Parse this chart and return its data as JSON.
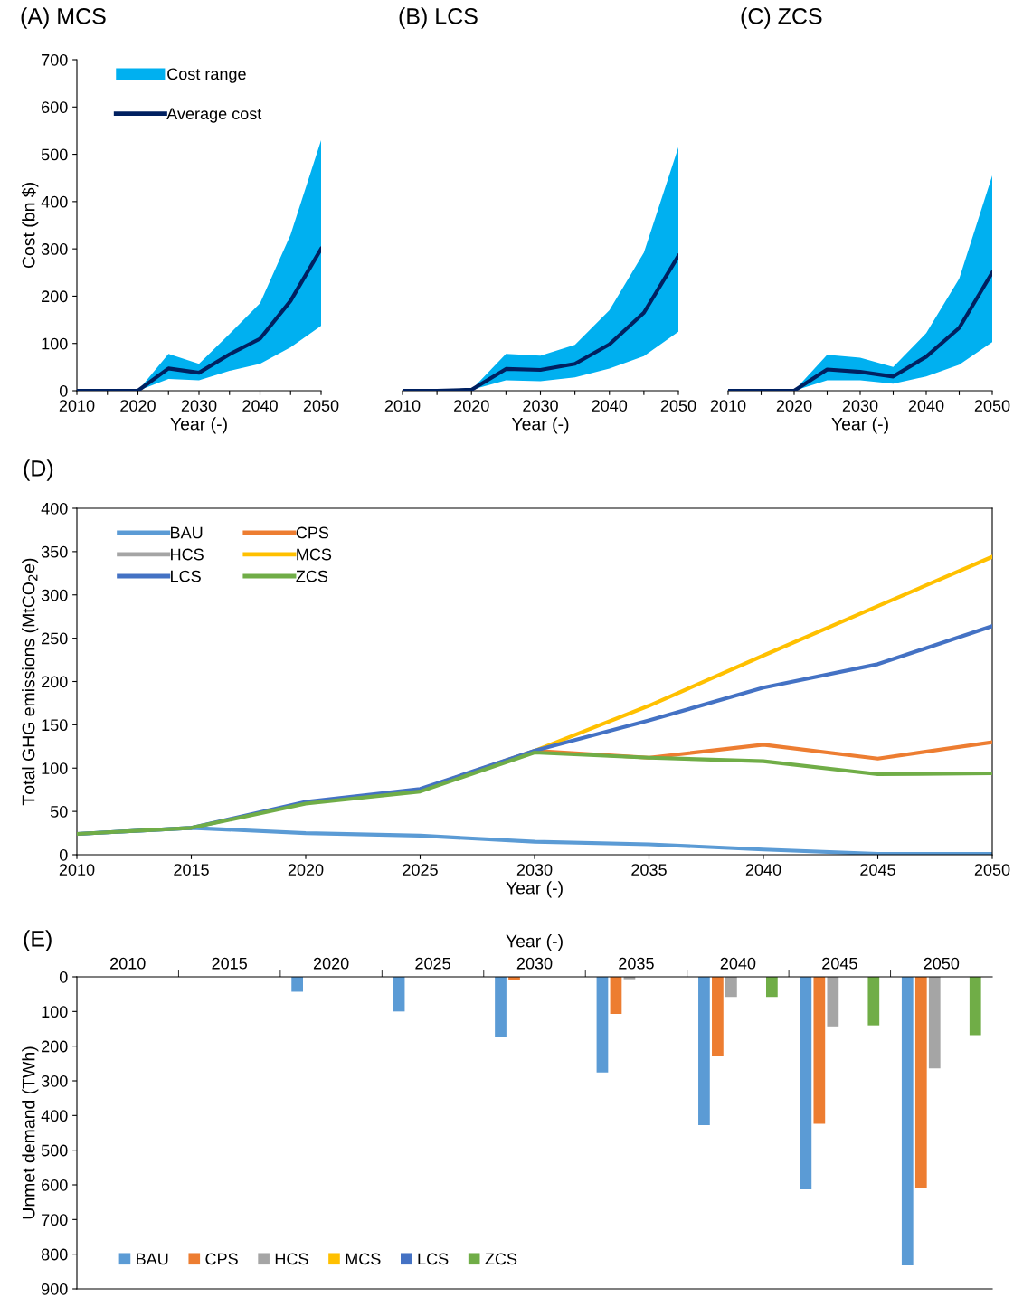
{
  "chart_data": [
    {
      "type": "area",
      "title": "(A) MCS",
      "xlabel": "Year (-)",
      "ylabel": "Cost (bn $)",
      "x": [
        2010,
        2015,
        2020,
        2025,
        2030,
        2035,
        2040,
        2045,
        2050
      ],
      "xlim": [
        2010,
        2050
      ],
      "xticks": [
        2010,
        {
          "value": 2015,
          "label": null
        },
        2020,
        {
          "value": 2025,
          "label": null
        },
        2030,
        {
          "value": 2035,
          "label": null
        },
        2040,
        {
          "value": 2045,
          "label": null
        },
        2050
      ],
      "ylim": [
        0,
        700
      ],
      "yticks": [
        0,
        100,
        200,
        300,
        400,
        500,
        600,
        700
      ],
      "grid": false,
      "legend": "top left",
      "series": [
        {
          "name": "Cost range",
          "type": "area",
          "color": "#00b0f0",
          "values": [
            null,
            null,
            null,
            null,
            null,
            null,
            null,
            null,
            null
          ],
          "lower": [
            0,
            0,
            0,
            25,
            22,
            42,
            57,
            92,
            137
          ],
          "upper": [
            0,
            0,
            0,
            78,
            57,
            120,
            185,
            330,
            530
          ]
        },
        {
          "name": "Average cost",
          "type": "line",
          "color": "#002060",
          "values": [
            0,
            0,
            0,
            47,
            38,
            77,
            110,
            190,
            300
          ]
        }
      ]
    },
    {
      "type": "area",
      "title": "(B) LCS",
      "xlabel": "Year (-)",
      "x": [
        2010,
        2015,
        2020,
        2025,
        2030,
        2035,
        2040,
        2045,
        2050
      ],
      "xlim": [
        2010,
        2050
      ],
      "xticks": [
        2010,
        {
          "value": 2015,
          "label": null
        },
        2020,
        {
          "value": 2025,
          "label": null
        },
        2030,
        {
          "value": 2035,
          "label": null
        },
        2040,
        {
          "value": 2045,
          "label": null
        },
        2050
      ],
      "ylim": [
        0,
        700
      ],
      "tick_labels": "x",
      "grid": false,
      "series": [
        {
          "type": "area",
          "color": "#00b0f0",
          "values": [
            null,
            null,
            null,
            null,
            null,
            null,
            null,
            null,
            null
          ],
          "lower": [
            0,
            0,
            2,
            22,
            20,
            28,
            47,
            73,
            125
          ],
          "upper": [
            0,
            0,
            2,
            78,
            74,
            97,
            170,
            292,
            515
          ]
        },
        {
          "type": "line",
          "color": "#002060",
          "values": [
            0,
            0,
            2,
            46,
            44,
            57,
            98,
            165,
            285
          ]
        }
      ]
    },
    {
      "type": "area",
      "title": "(C) ZCS",
      "xlabel": "Year (-)",
      "x": [
        2010,
        2015,
        2020,
        2025,
        2030,
        2035,
        2040,
        2045,
        2050
      ],
      "xlim": [
        2010,
        2050
      ],
      "xticks": [
        2010,
        {
          "value": 2015,
          "label": null
        },
        2020,
        {
          "value": 2025,
          "label": null
        },
        2030,
        {
          "value": 2035,
          "label": null
        },
        2040,
        {
          "value": 2045,
          "label": null
        },
        2050
      ],
      "ylim": [
        0,
        700
      ],
      "tick_labels": "x",
      "grid": false,
      "series": [
        {
          "type": "area",
          "color": "#00b0f0",
          "values": [
            null,
            null,
            null,
            null,
            null,
            null,
            null,
            null,
            null
          ],
          "lower": [
            0,
            0,
            0,
            22,
            22,
            15,
            30,
            55,
            103
          ],
          "upper": [
            0,
            0,
            0,
            76,
            70,
            50,
            122,
            237,
            455
          ]
        },
        {
          "type": "line",
          "color": "#002060",
          "values": [
            0,
            0,
            0,
            45,
            40,
            30,
            72,
            133,
            250
          ]
        }
      ]
    },
    {
      "type": "line",
      "title": "(D)",
      "xlabel": "Year (-)",
      "ylabel": "Total GHG emissions (MtCO$_{2}$e)",
      "x": [
        2010,
        2015,
        2020,
        2025,
        2030,
        2035,
        2040,
        2045,
        2050
      ],
      "xlim": [
        2010,
        2050
      ],
      "xticks": [
        2010,
        2015,
        2020,
        2025,
        2030,
        2035,
        2040,
        2045,
        2050
      ],
      "ylim": [
        0,
        400
      ],
      "yticks": [
        0,
        50,
        100,
        150,
        200,
        250,
        300,
        350,
        400
      ],
      "grid": false,
      "legend": "top left",
      "marker": "none",
      "line_style": "solid",
      "series": [
        {
          "name": "BAU",
          "color": "#5b9bd5",
          "values": [
            24,
            31,
            25,
            22,
            15,
            12,
            6,
            1,
            1
          ]
        },
        {
          "name": "CPS",
          "color": "#ed7d31",
          "values": [
            null,
            null,
            null,
            75,
            120,
            112,
            127,
            111,
            130
          ]
        },
        {
          "name": "HCS",
          "color": "#a5a5a5",
          "values": [
            null,
            null,
            null,
            null,
            null,
            null,
            null,
            null,
            null
          ]
        },
        {
          "name": "MCS",
          "color": "#ffc000",
          "values": [
            null,
            null,
            null,
            75,
            120,
            172,
            230,
            287,
            344
          ]
        },
        {
          "name": "LCS",
          "color": "#4472c4",
          "values": [
            24,
            31,
            61,
            76,
            120,
            155,
            193,
            220,
            264
          ]
        },
        {
          "name": "ZCS",
          "color": "#70ad47",
          "values": [
            24,
            31,
            59,
            73,
            118,
            112,
            108,
            93,
            94
          ]
        }
      ]
    },
    {
      "type": "bar",
      "title": "(E)",
      "xlabel": "Year (-)",
      "ylabel": "Unmet demand (TWh)",
      "categories": [
        "2010",
        "2015",
        "2020",
        "2025",
        "2030",
        "2035",
        "2040",
        "2045",
        "2050"
      ],
      "ylim": [
        900,
        0
      ],
      "yticks": [
        0,
        100,
        200,
        300,
        400,
        500,
        600,
        700,
        800,
        900
      ],
      "grid": false,
      "legend": "bottom left",
      "series": [
        {
          "name": "BAU",
          "color": "#5b9bd5",
          "values": [
            0,
            0,
            43,
            100,
            173,
            276,
            428,
            613,
            832
          ]
        },
        {
          "name": "CPS",
          "color": "#ed7d31",
          "values": [
            0,
            0,
            0,
            0,
            8,
            107,
            229,
            424,
            610
          ]
        },
        {
          "name": "HCS",
          "color": "#a5a5a5",
          "values": [
            0,
            0,
            0,
            0,
            0,
            7,
            58,
            143,
            264
          ]
        },
        {
          "name": "MCS",
          "color": "#ffc000",
          "values": [
            0,
            0,
            0,
            0,
            0,
            0,
            0,
            0,
            0
          ]
        },
        {
          "name": "LCS",
          "color": "#4472c4",
          "values": [
            0,
            0,
            0,
            0,
            0,
            0,
            0,
            0,
            0
          ]
        },
        {
          "name": "ZCS",
          "color": "#70ad47",
          "values": [
            0,
            0,
            0,
            0,
            0,
            0,
            58,
            140,
            168
          ]
        }
      ]
    }
  ]
}
